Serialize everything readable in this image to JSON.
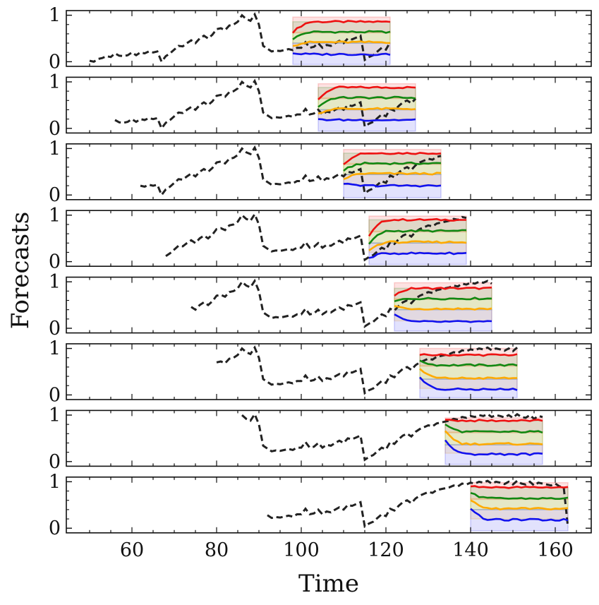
{
  "figure": {
    "ylabel": "Forecasts",
    "xlabel": "Time",
    "x_ticks": [
      60,
      80,
      100,
      120,
      140,
      160
    ],
    "y_ticks": [
      0,
      1
    ]
  },
  "colors": {
    "actual": "#222222",
    "q90": "#ee1111",
    "q70": "#118811",
    "q50": "#ffaa00",
    "q10": "#1111ee"
  },
  "chart_data": {
    "type": "line",
    "title": "",
    "xlabel": "Time",
    "ylabel": "Forecasts",
    "xlim": [
      44.5,
      168.5
    ],
    "ylim": [
      -0.1,
      1.1
    ],
    "grid": false,
    "legend": "none",
    "actual_series": {
      "name": "",
      "style": "dashed",
      "x": [
        50,
        51,
        52,
        53,
        54,
        55,
        56,
        57,
        58,
        59,
        60,
        61,
        62,
        63,
        64,
        65,
        66,
        67,
        68,
        69,
        70,
        71,
        72,
        73,
        74,
        75,
        76,
        77,
        78,
        79,
        80,
        81,
        82,
        83,
        84,
        85,
        86,
        87,
        88,
        89,
        90,
        91,
        92,
        93,
        94,
        95,
        96,
        97,
        98,
        99,
        100,
        101,
        102,
        103,
        104,
        105,
        106,
        107,
        108,
        109,
        110,
        111,
        112,
        113,
        114,
        115,
        116,
        117,
        118,
        119,
        120,
        121,
        122,
        123,
        124,
        125,
        126,
        127,
        128,
        129,
        130,
        131,
        132,
        133,
        134,
        135,
        136,
        137,
        138,
        139,
        140,
        141,
        142,
        143,
        144,
        145,
        146,
        147,
        148,
        149,
        150,
        151,
        152,
        153,
        154,
        155,
        156,
        157,
        158,
        159,
        160,
        161,
        162,
        163
      ],
      "values": [
        0.02,
        0.0,
        0.06,
        0.08,
        0.12,
        0.1,
        0.18,
        0.13,
        0.12,
        0.14,
        0.2,
        0.14,
        0.2,
        0.18,
        0.22,
        0.2,
        0.22,
        0.0,
        0.12,
        0.18,
        0.26,
        0.34,
        0.33,
        0.4,
        0.46,
        0.4,
        0.5,
        0.56,
        0.5,
        0.58,
        0.7,
        0.72,
        0.68,
        0.78,
        0.8,
        0.86,
        1.0,
        0.92,
        0.88,
        1.02,
        0.8,
        0.34,
        0.28,
        0.22,
        0.24,
        0.23,
        0.25,
        0.27,
        0.25,
        0.3,
        0.3,
        0.42,
        0.3,
        0.32,
        0.4,
        0.3,
        0.36,
        0.34,
        0.4,
        0.45,
        0.4,
        0.5,
        0.48,
        0.52,
        0.56,
        0.04,
        0.1,
        0.14,
        0.22,
        0.3,
        0.26,
        0.42,
        0.38,
        0.48,
        0.56,
        0.6,
        0.54,
        0.64,
        0.7,
        0.74,
        0.78,
        0.76,
        0.82,
        0.84,
        0.86,
        0.88,
        0.92,
        0.9,
        0.96,
        0.94,
        0.98,
        0.96,
        1.0,
        0.98,
        1.02,
        0.96,
        1.0,
        0.98,
        0.95,
        1.0,
        0.94,
        1.02,
        0.96,
        0.94,
        1.0,
        0.92,
        0.98,
        0.96,
        0.94,
        0.92,
        0.96,
        0.9,
        0.88,
        0.02
      ]
    },
    "panels": [
      {
        "panel": 1,
        "x_start": 50,
        "forecast_start": 98,
        "forecast_end": 121,
        "band": {
          "fill": "#ee1111",
          "low": 0.62,
          "high": 0.96
        },
        "series": [
          {
            "color": "#ee1111",
            "start": 0.62,
            "level": 0.86
          },
          {
            "color": "#118811",
            "start": 0.48,
            "level": 0.64
          },
          {
            "color": "#ffaa00",
            "start": 0.34,
            "level": 0.42
          },
          {
            "color": "#1111ee",
            "start": 0.18,
            "level": 0.16
          }
        ]
      },
      {
        "panel": 2,
        "x_start": 56,
        "forecast_start": 104,
        "forecast_end": 127,
        "band": {
          "fill": "#ee1111",
          "low": 0.62,
          "high": 0.96
        },
        "series": [
          {
            "color": "#ee1111",
            "start": 0.62,
            "level": 0.88
          },
          {
            "color": "#118811",
            "start": 0.46,
            "level": 0.66
          },
          {
            "color": "#ffaa00",
            "start": 0.32,
            "level": 0.42
          },
          {
            "color": "#1111ee",
            "start": 0.2,
            "level": 0.18
          }
        ]
      },
      {
        "panel": 3,
        "x_start": 62,
        "forecast_start": 110,
        "forecast_end": 133,
        "band": {
          "fill": "#ee1111",
          "low": 0.66,
          "high": 0.98
        },
        "series": [
          {
            "color": "#ee1111",
            "start": 0.66,
            "level": 0.9
          },
          {
            "color": "#118811",
            "start": 0.52,
            "level": 0.68
          },
          {
            "color": "#ffaa00",
            "start": 0.34,
            "level": 0.46
          },
          {
            "color": "#1111ee",
            "start": 0.24,
            "level": 0.2
          }
        ]
      },
      {
        "panel": 4,
        "x_start": 68,
        "forecast_start": 116,
        "forecast_end": 139,
        "band": {
          "fill": "#ee1111",
          "low": 0.55,
          "high": 0.98
        },
        "series": [
          {
            "color": "#ee1111",
            "start": 0.55,
            "level": 0.9
          },
          {
            "color": "#118811",
            "start": 0.38,
            "level": 0.66
          },
          {
            "color": "#ffaa00",
            "start": 0.24,
            "level": 0.42
          },
          {
            "color": "#1111ee",
            "start": 0.08,
            "level": 0.18
          }
        ]
      },
      {
        "panel": 5,
        "x_start": 74,
        "forecast_start": 122,
        "forecast_end": 145,
        "band": {
          "fill": "#ee1111",
          "low": 0.7,
          "high": 0.98
        },
        "series": [
          {
            "color": "#ee1111",
            "start": 0.7,
            "level": 0.86
          },
          {
            "color": "#118811",
            "start": 0.58,
            "level": 0.64
          },
          {
            "color": "#ffaa00",
            "start": 0.48,
            "level": 0.42
          },
          {
            "color": "#1111ee",
            "start": 0.3,
            "level": 0.14
          }
        ]
      },
      {
        "panel": 6,
        "x_start": 80,
        "forecast_start": 128,
        "forecast_end": 151,
        "band": {
          "fill": "#ee1111",
          "low": 0.86,
          "high": 1.0
        },
        "series": [
          {
            "color": "#ee1111",
            "start": 0.86,
            "level": 0.86
          },
          {
            "color": "#118811",
            "start": 0.74,
            "level": 0.64
          },
          {
            "color": "#ffaa00",
            "start": 0.56,
            "level": 0.36
          },
          {
            "color": "#1111ee",
            "start": 0.38,
            "level": 0.12
          }
        ]
      },
      {
        "panel": 7,
        "x_start": 86,
        "forecast_start": 134,
        "forecast_end": 157,
        "band": {
          "fill": "#ee1111",
          "low": 0.86,
          "high": 0.94
        },
        "series": [
          {
            "color": "#ee1111",
            "start": 0.9,
            "level": 0.88
          },
          {
            "color": "#118811",
            "start": 0.8,
            "level": 0.64
          },
          {
            "color": "#ffaa00",
            "start": 0.66,
            "level": 0.38
          },
          {
            "color": "#1111ee",
            "start": 0.46,
            "level": 0.16
          }
        ]
      },
      {
        "panel": 8,
        "x_start": 92,
        "forecast_start": 140,
        "forecast_end": 163,
        "band": {
          "fill": "#ee1111",
          "low": 0.86,
          "high": 0.98
        },
        "series": [
          {
            "color": "#ee1111",
            "start": 0.9,
            "level": 0.88
          },
          {
            "color": "#118811",
            "start": 0.76,
            "level": 0.64
          },
          {
            "color": "#ffaa00",
            "start": 0.6,
            "level": 0.42
          },
          {
            "color": "#1111ee",
            "start": 0.42,
            "level": 0.18
          }
        ]
      }
    ]
  }
}
